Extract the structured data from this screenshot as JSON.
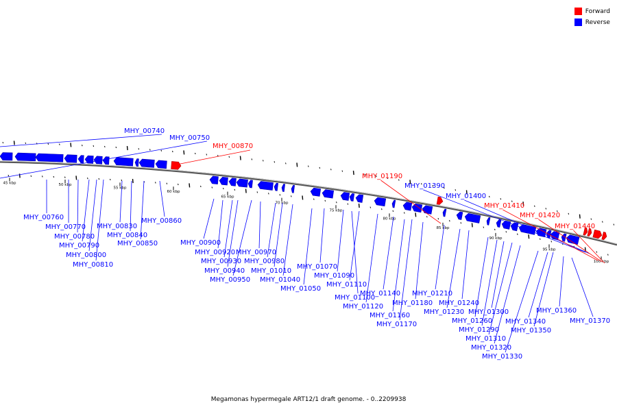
{
  "legend": {
    "forward_label": "Forward",
    "reverse_label": "Reverse",
    "forward_color": "#ff0000",
    "reverse_color": "#0000ff"
  },
  "caption": "Megamonas hypermegale ART12/1 draft genome. - 0..2209938",
  "ticks": [
    "45 kbp",
    "50 kbp",
    "55 kbp",
    "60 kbp",
    "65 kbp",
    "70 kbp",
    "75 kbp",
    "80 kbp",
    "85 kbp",
    "90 kbp",
    "95 kbp",
    "100 kbp"
  ],
  "genes": [
    {
      "id": "MHY_00740",
      "strand": "reverse"
    },
    {
      "id": "MHY_00750",
      "strand": "reverse"
    },
    {
      "id": "MHY_00760",
      "strand": "reverse"
    },
    {
      "id": "MHY_00770",
      "strand": "reverse"
    },
    {
      "id": "MHY_00780",
      "strand": "reverse"
    },
    {
      "id": "MHY_00790",
      "strand": "reverse"
    },
    {
      "id": "MHY_00800",
      "strand": "reverse"
    },
    {
      "id": "MHY_00810",
      "strand": "reverse"
    },
    {
      "id": "MHY_00830",
      "strand": "reverse"
    },
    {
      "id": "MHY_00840",
      "strand": "reverse"
    },
    {
      "id": "MHY_00850",
      "strand": "reverse"
    },
    {
      "id": "MHY_00860",
      "strand": "reverse"
    },
    {
      "id": "MHY_00870",
      "strand": "forward"
    },
    {
      "id": "MHY_00900",
      "strand": "reverse"
    },
    {
      "id": "MHY_00920",
      "strand": "reverse"
    },
    {
      "id": "MHY_00930",
      "strand": "reverse"
    },
    {
      "id": "MHY_00940",
      "strand": "reverse"
    },
    {
      "id": "MHY_00950",
      "strand": "reverse"
    },
    {
      "id": "MHY_00970",
      "strand": "reverse"
    },
    {
      "id": "MHY_00980",
      "strand": "reverse"
    },
    {
      "id": "MHY_01010",
      "strand": "reverse"
    },
    {
      "id": "MHY_01040",
      "strand": "reverse"
    },
    {
      "id": "MHY_01050",
      "strand": "reverse"
    },
    {
      "id": "MHY_01070",
      "strand": "reverse"
    },
    {
      "id": "MHY_01090",
      "strand": "reverse"
    },
    {
      "id": "MHY_01100",
      "strand": "reverse"
    },
    {
      "id": "MHY_01110",
      "strand": "reverse"
    },
    {
      "id": "MHY_01120",
      "strand": "reverse"
    },
    {
      "id": "MHY_01140",
      "strand": "reverse"
    },
    {
      "id": "MHY_01160",
      "strand": "reverse"
    },
    {
      "id": "MHY_01170",
      "strand": "reverse"
    },
    {
      "id": "MHY_01180",
      "strand": "reverse"
    },
    {
      "id": "MHY_01190",
      "strand": "forward"
    },
    {
      "id": "MHY_01210",
      "strand": "reverse"
    },
    {
      "id": "MHY_01230",
      "strand": "reverse"
    },
    {
      "id": "MHY_01240",
      "strand": "reverse"
    },
    {
      "id": "MHY_01260",
      "strand": "reverse"
    },
    {
      "id": "MHY_01290",
      "strand": "reverse"
    },
    {
      "id": "MHY_01300",
      "strand": "reverse"
    },
    {
      "id": "MHY_01310",
      "strand": "reverse"
    },
    {
      "id": "MHY_01320",
      "strand": "reverse"
    },
    {
      "id": "MHY_01330",
      "strand": "reverse"
    },
    {
      "id": "MHY_01340",
      "strand": "reverse"
    },
    {
      "id": "MHY_01350",
      "strand": "reverse"
    },
    {
      "id": "MHY_01360",
      "strand": "reverse"
    },
    {
      "id": "MHY_01370",
      "strand": "reverse"
    },
    {
      "id": "MHY_01390",
      "strand": "reverse"
    },
    {
      "id": "MHY_01400",
      "strand": "reverse"
    },
    {
      "id": "MHY_01410",
      "strand": "forward"
    },
    {
      "id": "MHY_01420",
      "strand": "forward"
    },
    {
      "id": "MHY_01440",
      "strand": "forward"
    }
  ]
}
